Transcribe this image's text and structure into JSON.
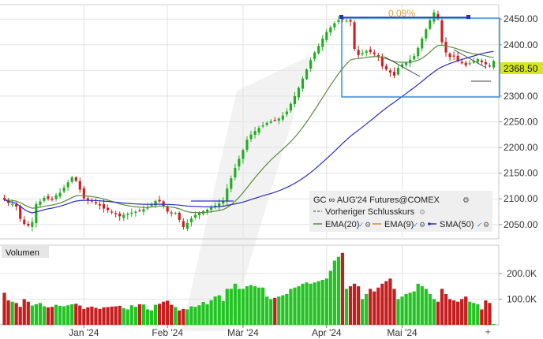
{
  "chart_data": {
    "type": "candlestick",
    "instrument": "GC ∞ AUG'24 Futures@COMEX",
    "price_axis": {
      "ticks": [
        "2450.00",
        "2400.00",
        "2350.00",
        "2300.00",
        "2250.00",
        "2200.00",
        "2150.00",
        "2100.00",
        "2050.00"
      ],
      "ylim": [
        2022,
        2478
      ]
    },
    "current_price": "2368.50",
    "percent_annotation": "0.09%",
    "x_ticks": [
      "Jan '24",
      "Feb '24",
      "Mär '24",
      "Apr '24",
      "Mai '24"
    ],
    "x_ticks_data": [
      20,
      41,
      60,
      81,
      100
    ],
    "bars_count": 124,
    "volume_panel": {
      "title": "Volumen",
      "ticks": [
        "200.0K",
        "100.0K"
      ],
      "tick_values": [
        200000,
        100000
      ],
      "ylim": [
        0,
        310000
      ]
    },
    "closes": [
      2098,
      2092,
      2090,
      2085,
      2061,
      2051,
      2048,
      2055,
      2090,
      2095,
      2102,
      2100,
      2098,
      2107,
      2112,
      2122,
      2132,
      2142,
      2135,
      2118,
      2101,
      2097,
      2095,
      2091,
      2087,
      2081,
      2078,
      2074,
      2070,
      2066,
      2069,
      2071,
      2073,
      2075,
      2077,
      2080,
      2084,
      2090,
      2096,
      2095,
      2085,
      2075,
      2073,
      2072,
      2059,
      2045,
      2053,
      2062,
      2069,
      2073,
      2076,
      2079,
      2083,
      2087,
      2091,
      2095,
      2120,
      2140,
      2160,
      2178,
      2195,
      2215,
      2225,
      2232,
      2238,
      2243,
      2248,
      2251,
      2253,
      2256,
      2262,
      2270,
      2285,
      2300,
      2316,
      2334,
      2352,
      2370,
      2385,
      2398,
      2412,
      2425,
      2434,
      2442,
      2448,
      2449,
      2447,
      2445,
      2392,
      2380,
      2384,
      2388,
      2386,
      2382,
      2376,
      2358,
      2352,
      2346,
      2340,
      2355,
      2362,
      2365,
      2371,
      2378,
      2394,
      2412,
      2430,
      2448,
      2463,
      2450,
      2405,
      2385,
      2376,
      2378,
      2368,
      2364,
      2360,
      2364,
      2368,
      2372,
      2366,
      2362,
      2358,
      2368.5
    ],
    "volumes": [
      125000,
      95000,
      90000,
      85000,
      70000,
      100000,
      90000,
      75000,
      80000,
      85000,
      72000,
      68000,
      70000,
      78000,
      74000,
      72000,
      76000,
      80000,
      82000,
      75000,
      62000,
      68000,
      71000,
      66000,
      62000,
      68000,
      69000,
      71000,
      72000,
      74000,
      65000,
      60000,
      76000,
      70000,
      80000,
      79000,
      60000,
      56000,
      78000,
      82000,
      90000,
      94000,
      78000,
      69000,
      56000,
      62000,
      60000,
      72000,
      70000,
      76000,
      89000,
      80000,
      96000,
      110000,
      115000,
      92000,
      140000,
      140000,
      160000,
      140000,
      140000,
      150000,
      155000,
      150000,
      145000,
      145000,
      110000,
      100000,
      105000,
      110000,
      115000,
      120000,
      140000,
      145000,
      150000,
      160000,
      165000,
      160000,
      165000,
      170000,
      175000,
      180000,
      210000,
      250000,
      265000,
      280000,
      140000,
      150000,
      160000,
      150000,
      100000,
      120000,
      140000,
      130000,
      145000,
      160000,
      170000,
      180000,
      140000,
      100000,
      110000,
      120000,
      125000,
      130000,
      160000,
      150000,
      140000,
      120000,
      100000,
      90000,
      140000,
      120000,
      100000,
      95000,
      90000,
      100000,
      110000,
      90000,
      85000,
      80000,
      60000,
      95000,
      85000,
      3000
    ],
    "series": [
      {
        "name": "EMA(20)",
        "color": "#5a8a3c"
      },
      {
        "name": "EMA(9)",
        "color": "#e8822a"
      },
      {
        "name": "SMA(50)",
        "color": "#2d2dbf"
      }
    ],
    "previous_close_label": "Vorheriger Schlusskurs"
  },
  "legend": {
    "title": "GC ∞ AUG'24 Futures@COMEX",
    "prev_close": "Vorheriger Schlusskurs",
    "ema20": "EMA(20)",
    "ema9": "EMA(9)",
    "sma50": "SMA(50)"
  },
  "colors": {
    "up": "#1fae1f",
    "down": "#cc1f1f",
    "grid": "#e2e2e2",
    "accent": "#3b8fd6",
    "price_tag": "#d6e81e",
    "volume_up": "#22c322",
    "volume_down": "#c41e1e"
  }
}
